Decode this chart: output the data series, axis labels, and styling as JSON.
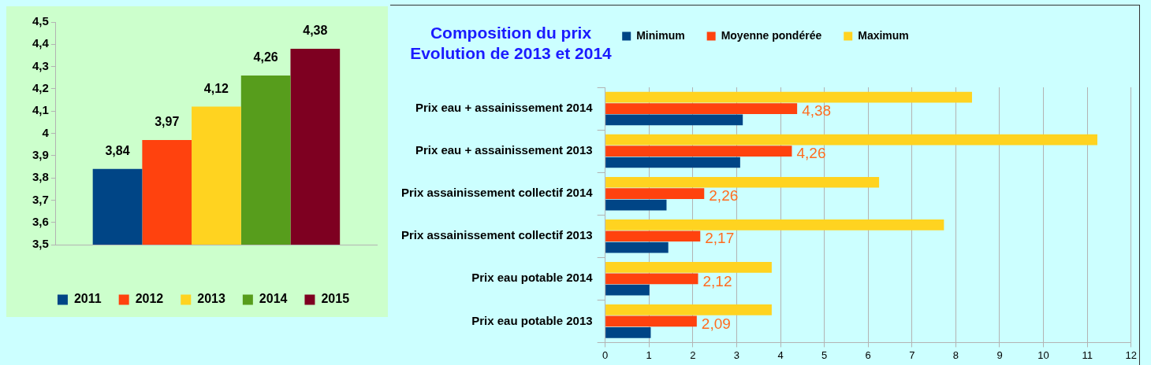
{
  "chart_data": [
    {
      "type": "bar",
      "categories": [
        null
      ],
      "series": [
        {
          "name": "2011",
          "color": "#004586",
          "values": [
            3.84
          ],
          "value_labels": [
            "3,84"
          ]
        },
        {
          "name": "2012",
          "color": "#ff420e",
          "values": [
            3.97
          ],
          "value_labels": [
            "3,97"
          ]
        },
        {
          "name": "2013",
          "color": "#ffd320",
          "values": [
            4.12
          ],
          "value_labels": [
            "4,12"
          ]
        },
        {
          "name": "2014",
          "color": "#579d1c",
          "values": [
            4.26
          ],
          "value_labels": [
            "4,26"
          ]
        },
        {
          "name": "2015",
          "color": "#7e0021",
          "values": [
            4.38
          ],
          "value_labels": [
            "4,38"
          ]
        }
      ],
      "ylim": [
        3.5,
        4.5
      ],
      "yticks": [
        {
          "value": 3.5,
          "label": "3,5"
        },
        {
          "value": 3.6,
          "label": "3,6"
        },
        {
          "value": 3.7,
          "label": "3,7"
        },
        {
          "value": 3.8,
          "label": "3,8"
        },
        {
          "value": 3.9,
          "label": "3,9"
        },
        4,
        {
          "value": 4.1,
          "label": "4,1"
        },
        {
          "value": 4.2,
          "label": "4,2"
        },
        {
          "value": 4.3,
          "label": "4,3"
        },
        {
          "value": 4.4,
          "label": "4,4"
        },
        {
          "value": 4.5,
          "label": "4,5"
        }
      ],
      "grid": false,
      "legend": "bottom"
    },
    {
      "type": "bar",
      "orientation": "horizontal",
      "title": "Composition du prix\nEvolution de 2013 et 2014",
      "categories": [
        "Prix eau + assainissement 2014",
        "Prix eau + assainissement 2013",
        "Prix assainissement collectif 2014",
        "Prix assainissement collectif 2013",
        "Prix eau potable 2014",
        "Prix eau potable 2013"
      ],
      "series": [
        {
          "name": "Minimum",
          "color": "#004586",
          "values": [
            3.14,
            3.08,
            1.4,
            1.44,
            1.01,
            1.04
          ]
        },
        {
          "name": "Moyenne pondérée",
          "color": "#ff420e",
          "values": [
            4.38,
            4.26,
            2.26,
            2.17,
            2.12,
            2.09
          ],
          "value_labels": [
            "4,38",
            "4,26",
            "2,26",
            "2,17",
            "2,12",
            "2,09"
          ]
        },
        {
          "name": "Maximum",
          "color": "#ffd320",
          "values": [
            8.37,
            11.23,
            6.25,
            7.73,
            3.8,
            3.8
          ]
        }
      ],
      "xlim": [
        0,
        12
      ],
      "xticks": [
        0,
        1,
        2,
        3,
        4,
        5,
        6,
        7,
        8,
        9,
        10,
        11,
        12
      ],
      "grid": "x",
      "legend": "top"
    }
  ]
}
